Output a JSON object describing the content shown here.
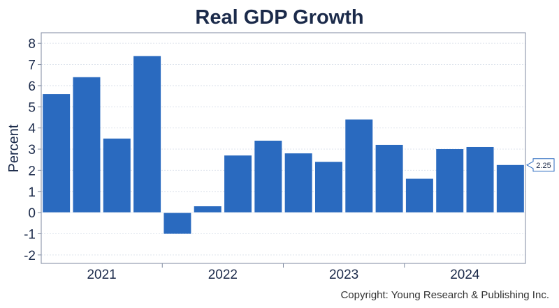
{
  "chart_data": {
    "type": "bar",
    "title": "Real GDP Growth",
    "ylabel": "Percent",
    "xlabel": "",
    "ylim": [
      -2.4,
      8.5
    ],
    "yticks": [
      "8",
      "7",
      "6",
      "5",
      "4",
      "3",
      "2",
      "1",
      "0",
      "-1",
      "-2"
    ],
    "ytick_values": [
      8,
      7,
      6,
      5,
      4,
      3,
      2,
      1,
      0,
      -1,
      -2
    ],
    "year_labels": [
      "2021",
      "2022",
      "2023",
      "2024"
    ],
    "categories": [
      "2021 Q1",
      "2021 Q2",
      "2021 Q3",
      "2021 Q4",
      "2022 Q1",
      "2022 Q2",
      "2022 Q3",
      "2022 Q4",
      "2023 Q1",
      "2023 Q2",
      "2023 Q3",
      "2023 Q4",
      "2024 Q1",
      "2024 Q2",
      "2024 Q3",
      "2024 Q4"
    ],
    "values": [
      5.6,
      6.4,
      3.5,
      7.4,
      -1.0,
      0.3,
      2.7,
      3.4,
      2.8,
      2.4,
      4.4,
      3.2,
      1.6,
      3.0,
      3.1,
      2.25
    ],
    "last_value_label": "2.25",
    "bar_color": "#2a6abf",
    "grid": true
  },
  "footer": {
    "copyright": "Copyright: Young Research & Publishing Inc."
  }
}
